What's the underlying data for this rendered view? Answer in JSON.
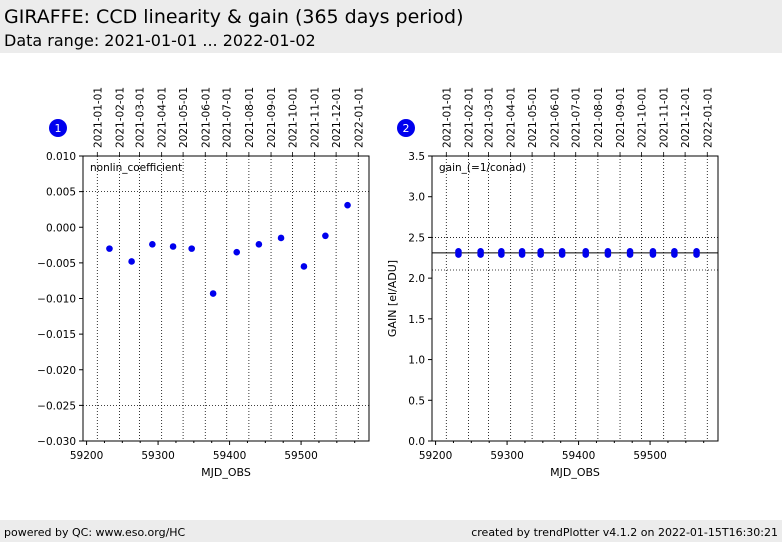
{
  "header": {
    "title": "GIRAFFE: CCD linearity & gain (365 days period)",
    "subtitle": "Data range: 2021-01-01 ... 2022-01-02"
  },
  "footer": {
    "left": "powered by QC: www.eso.org/HC",
    "right": "created by trendPlotter v4.1.2 on 2022-01-15T16:30:21"
  },
  "colors": {
    "points": "#0000ee",
    "badge": "#0000ee",
    "header_bg": "#ececec"
  },
  "chart_data": [
    {
      "type": "scatter",
      "badge": "1",
      "label": "nonlin_coefficient",
      "xlabel": "MJD_OBS",
      "ylabel": "",
      "xlim": [
        59195,
        59595
      ],
      "ylim": [
        -0.03,
        0.01
      ],
      "xticks": [
        59200,
        59300,
        59400,
        59500
      ],
      "yticks": [
        "0.010",
        "0.005",
        "0.000",
        "−0.005",
        "−0.010",
        "−0.015",
        "−0.020",
        "−0.025",
        "−0.030"
      ],
      "ytick_values": [
        0.01,
        0.005,
        0.0,
        -0.005,
        -0.01,
        -0.015,
        -0.02,
        -0.025,
        -0.03
      ],
      "hlines": [
        0.005,
        -0.025
      ],
      "top_dates": [
        "2021-01-01",
        "2021-02-01",
        "2021-03-01",
        "2021-04-01",
        "2021-05-01",
        "2021-06-01",
        "2021-07-01",
        "2021-08-01",
        "2021-09-01",
        "2021-10-01",
        "2021-11-01",
        "2021-12-01",
        "2022-01-01"
      ],
      "top_date_mjd": [
        59215,
        59246,
        59274,
        59305,
        59335,
        59366,
        59396,
        59427,
        59458,
        59488,
        59519,
        59549,
        59580
      ],
      "points": [
        {
          "x": 59232,
          "y": -0.003
        },
        {
          "x": 59263,
          "y": -0.0048
        },
        {
          "x": 59292,
          "y": -0.0024
        },
        {
          "x": 59321,
          "y": -0.0027
        },
        {
          "x": 59347,
          "y": -0.003
        },
        {
          "x": 59377,
          "y": -0.0093
        },
        {
          "x": 59410,
          "y": -0.0035
        },
        {
          "x": 59441,
          "y": -0.0024
        },
        {
          "x": 59472,
          "y": -0.0015
        },
        {
          "x": 59504,
          "y": -0.0055
        },
        {
          "x": 59534,
          "y": -0.0012
        },
        {
          "x": 59565,
          "y": 0.0031
        }
      ]
    },
    {
      "type": "scatter",
      "badge": "2",
      "label": "gain_(=1/conad)",
      "xlabel": "MJD_OBS",
      "ylabel": "GAIN [el/ADU]",
      "xlim": [
        59195,
        59595
      ],
      "ylim": [
        0.0,
        3.5
      ],
      "xticks": [
        59200,
        59300,
        59400,
        59500
      ],
      "yticks": [
        "3.5",
        "3.0",
        "2.5",
        "2.0",
        "1.5",
        "1.0",
        "0.5",
        "0.0"
      ],
      "ytick_values": [
        3.5,
        3.0,
        2.5,
        2.0,
        1.5,
        1.0,
        0.5,
        0.0
      ],
      "hlines": [
        2.5,
        2.1
      ],
      "solid_hline": 2.31,
      "top_dates": [
        "2021-01-01",
        "2021-02-01",
        "2021-03-01",
        "2021-04-01",
        "2021-05-01",
        "2021-06-01",
        "2021-07-01",
        "2021-08-01",
        "2021-09-01",
        "2021-10-01",
        "2021-11-01",
        "2021-12-01",
        "2022-01-01"
      ],
      "top_date_mjd": [
        59215,
        59246,
        59274,
        59305,
        59335,
        59366,
        59396,
        59427,
        59458,
        59488,
        59519,
        59549,
        59580
      ],
      "points": [
        {
          "x": 59232,
          "y": 2.33
        },
        {
          "x": 59232,
          "y": 2.29
        },
        {
          "x": 59263,
          "y": 2.33
        },
        {
          "x": 59263,
          "y": 2.29
        },
        {
          "x": 59292,
          "y": 2.33
        },
        {
          "x": 59292,
          "y": 2.29
        },
        {
          "x": 59321,
          "y": 2.33
        },
        {
          "x": 59321,
          "y": 2.29
        },
        {
          "x": 59347,
          "y": 2.33
        },
        {
          "x": 59347,
          "y": 2.29
        },
        {
          "x": 59377,
          "y": 2.33
        },
        {
          "x": 59377,
          "y": 2.29
        },
        {
          "x": 59410,
          "y": 2.33
        },
        {
          "x": 59410,
          "y": 2.29
        },
        {
          "x": 59441,
          "y": 2.33
        },
        {
          "x": 59441,
          "y": 2.29
        },
        {
          "x": 59472,
          "y": 2.33
        },
        {
          "x": 59472,
          "y": 2.29
        },
        {
          "x": 59504,
          "y": 2.33
        },
        {
          "x": 59504,
          "y": 2.29
        },
        {
          "x": 59534,
          "y": 2.33
        },
        {
          "x": 59534,
          "y": 2.29
        },
        {
          "x": 59565,
          "y": 2.33
        },
        {
          "x": 59565,
          "y": 2.29
        }
      ]
    }
  ]
}
